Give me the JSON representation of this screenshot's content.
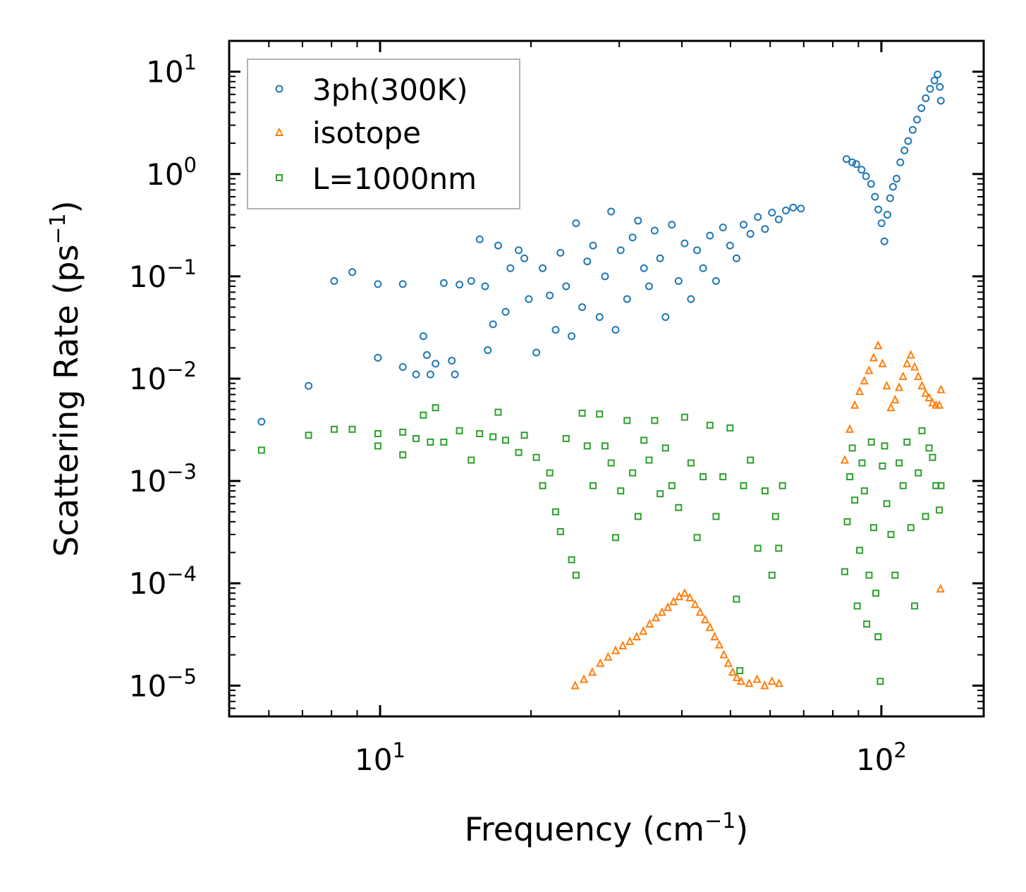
{
  "chart_data": {
    "type": "scatter",
    "title": "",
    "xlabel": "Frequency (cm⁻¹)",
    "xlabel_base": "Frequency (cm",
    "xlabel_sup": "−1",
    "xlabel_end": ")",
    "ylabel": "Scattering Rate (ps⁻¹)",
    "ylabel_base": "Scattering Rate (ps",
    "ylabel_sup": "−1",
    "ylabel_end": ")",
    "xscale": "log",
    "yscale": "log",
    "xlim": [
      5,
      160
    ],
    "ylim": [
      5e-06,
      20
    ],
    "x_ticks": [
      {
        "value": 10,
        "base": "10",
        "exp": "1"
      },
      {
        "value": 100,
        "base": "10",
        "exp": "2"
      }
    ],
    "y_ticks": [
      {
        "value": 10,
        "base": "10",
        "exp": "1"
      },
      {
        "value": 1,
        "base": "10",
        "exp": "0"
      },
      {
        "value": 0.1,
        "base": "10",
        "exp": "−1"
      },
      {
        "value": 0.01,
        "base": "10",
        "exp": "−2"
      },
      {
        "value": 0.001,
        "base": "10",
        "exp": "−3"
      },
      {
        "value": 0.0001,
        "base": "10",
        "exp": "−4"
      },
      {
        "value": 1e-05,
        "base": "10",
        "exp": "−5"
      }
    ],
    "grid": false,
    "legend_position": "top-left",
    "series": [
      {
        "name": "3ph(300K)",
        "label": "3ph(300K)",
        "marker": "circle",
        "color": "#1f77b4",
        "points": [
          [
            5.8,
            0.0038
          ],
          [
            7.2,
            0.0085
          ],
          [
            8.1,
            0.09
          ],
          [
            8.8,
            0.11
          ],
          [
            9.9,
            0.084
          ],
          [
            9.9,
            0.016
          ],
          [
            11.1,
            0.084
          ],
          [
            11.1,
            0.013
          ],
          [
            11.8,
            0.011
          ],
          [
            12.2,
            0.026
          ],
          [
            12.4,
            0.017
          ],
          [
            12.6,
            0.011
          ],
          [
            12.9,
            0.014
          ],
          [
            13.4,
            0.086
          ],
          [
            13.9,
            0.015
          ],
          [
            14.4,
            0.083
          ],
          [
            14.1,
            0.011
          ],
          [
            15.2,
            0.09
          ],
          [
            15.8,
            0.23
          ],
          [
            16.2,
            0.08
          ],
          [
            16.4,
            0.019
          ],
          [
            16.8,
            0.034
          ],
          [
            17.2,
            0.2
          ],
          [
            17.8,
            0.045
          ],
          [
            18.2,
            0.12
          ],
          [
            18.9,
            0.18
          ],
          [
            19.4,
            0.15
          ],
          [
            19.8,
            0.06
          ],
          [
            20.5,
            0.018
          ],
          [
            21.1,
            0.12
          ],
          [
            21.8,
            0.065
          ],
          [
            22.4,
            0.03
          ],
          [
            22.9,
            0.17
          ],
          [
            23.5,
            0.08
          ],
          [
            24.1,
            0.026
          ],
          [
            24.6,
            0.33
          ],
          [
            25.3,
            0.05
          ],
          [
            25.9,
            0.14
          ],
          [
            26.6,
            0.2
          ],
          [
            27.4,
            0.04
          ],
          [
            28.1,
            0.1
          ],
          [
            28.9,
            0.43
          ],
          [
            29.5,
            0.03
          ],
          [
            30.2,
            0.18
          ],
          [
            31.1,
            0.06
          ],
          [
            31.9,
            0.24
          ],
          [
            32.7,
            0.35
          ],
          [
            33.6,
            0.12
          ],
          [
            34.4,
            0.08
          ],
          [
            35.3,
            0.28
          ],
          [
            36.2,
            0.15
          ],
          [
            37.1,
            0.04
          ],
          [
            38.2,
            0.32
          ],
          [
            39.4,
            0.09
          ],
          [
            40.5,
            0.21
          ],
          [
            41.7,
            0.06
          ],
          [
            42.9,
            0.18
          ],
          [
            44.1,
            0.12
          ],
          [
            45.5,
            0.25
          ],
          [
            46.8,
            0.09
          ],
          [
            48.3,
            0.3
          ],
          [
            49.9,
            0.2
          ],
          [
            51.4,
            0.15
          ],
          [
            53.1,
            0.32
          ],
          [
            54.8,
            0.26
          ],
          [
            56.7,
            0.38
          ],
          [
            58.6,
            0.29
          ],
          [
            60.5,
            0.42
          ],
          [
            62.4,
            0.36
          ],
          [
            64.5,
            0.44
          ],
          [
            66.7,
            0.47
          ],
          [
            69.1,
            0.46
          ],
          [
            85.2,
            1.4
          ],
          [
            87.5,
            1.3
          ],
          [
            89.1,
            1.25
          ],
          [
            91.3,
            1.1
          ],
          [
            93.2,
            0.95
          ],
          [
            95.4,
            0.8
          ],
          [
            97.1,
            0.6
          ],
          [
            98.6,
            0.45
          ],
          [
            100.1,
            0.33
          ],
          [
            101.4,
            0.22
          ],
          [
            102.8,
            0.4
          ],
          [
            104.1,
            0.58
          ],
          [
            105.5,
            0.75
          ],
          [
            107.2,
            0.9
          ],
          [
            109.1,
            1.3
          ],
          [
            111.2,
            1.7
          ],
          [
            113.1,
            2.1
          ],
          [
            115.5,
            2.7
          ],
          [
            117.8,
            3.4
          ],
          [
            120.2,
            4.4
          ],
          [
            122.6,
            5.5
          ],
          [
            125.1,
            6.8
          ],
          [
            127.6,
            8.2
          ],
          [
            129.5,
            9.4
          ],
          [
            130.8,
            7.1
          ],
          [
            131.4,
            5.2
          ]
        ]
      },
      {
        "name": "isotope",
        "label": "isotope",
        "marker": "triangle",
        "color": "#ff7f0e",
        "points": [
          [
            24.5,
            1e-05
          ],
          [
            25.5,
            1.15e-05
          ],
          [
            26.5,
            1.35e-05
          ],
          [
            27.5,
            1.65e-05
          ],
          [
            28.5,
            1.9e-05
          ],
          [
            29.5,
            2.2e-05
          ],
          [
            30.5,
            2.45e-05
          ],
          [
            31.5,
            2.7e-05
          ],
          [
            32.5,
            3e-05
          ],
          [
            33.5,
            3.4e-05
          ],
          [
            34.5,
            4e-05
          ],
          [
            35.5,
            4.6e-05
          ],
          [
            36.5,
            5.2e-05
          ],
          [
            37.5,
            5.8e-05
          ],
          [
            38.5,
            6.6e-05
          ],
          [
            39.5,
            7.4e-05
          ],
          [
            40.5,
            8e-05
          ],
          [
            41.5,
            7.2e-05
          ],
          [
            42.5,
            6.2e-05
          ],
          [
            43.5,
            5.2e-05
          ],
          [
            44.5,
            4.4e-05
          ],
          [
            45.5,
            3.7e-05
          ],
          [
            46.5,
            3e-05
          ],
          [
            47.5,
            2.5e-05
          ],
          [
            48.5,
            2e-05
          ],
          [
            49.5,
            1.65e-05
          ],
          [
            50.5,
            1.35e-05
          ],
          [
            51.5,
            1.2e-05
          ],
          [
            52.5,
            1.1e-05
          ],
          [
            54.5,
            1.05e-05
          ],
          [
            56.5,
            1.15e-05
          ],
          [
            58.5,
            1e-05
          ],
          [
            60.5,
            1.1e-05
          ],
          [
            62.5,
            1.05e-05
          ],
          [
            84.5,
            0.0016
          ],
          [
            86.5,
            0.0032
          ],
          [
            88.5,
            0.0055
          ],
          [
            90.5,
            0.0075
          ],
          [
            92.5,
            0.0095
          ],
          [
            94.5,
            0.012
          ],
          [
            96.5,
            0.016
          ],
          [
            98.5,
            0.021
          ],
          [
            100.5,
            0.014
          ],
          [
            102.5,
            0.0085
          ],
          [
            104.5,
            0.0052
          ],
          [
            106.5,
            0.0062
          ],
          [
            108.5,
            0.0082
          ],
          [
            110.5,
            0.0105
          ],
          [
            112.5,
            0.014
          ],
          [
            114.5,
            0.017
          ],
          [
            116.5,
            0.013
          ],
          [
            118.5,
            0.0105
          ],
          [
            120.5,
            0.0085
          ],
          [
            122.5,
            0.0072
          ],
          [
            124.5,
            0.0065
          ],
          [
            126.5,
            0.0058
          ],
          [
            128.5,
            0.0055
          ],
          [
            130.5,
            0.0055
          ],
          [
            131.5,
            0.0078
          ],
          [
            131.2,
            8.8e-05
          ]
        ]
      },
      {
        "name": "L=1000nm",
        "label": "L=1000nm",
        "marker": "square",
        "color": "#2ca02c",
        "points": [
          [
            5.8,
            0.002
          ],
          [
            7.2,
            0.0028
          ],
          [
            8.1,
            0.0032
          ],
          [
            8.8,
            0.0032
          ],
          [
            9.9,
            0.0029
          ],
          [
            9.9,
            0.0022
          ],
          [
            11.1,
            0.003
          ],
          [
            11.1,
            0.0018
          ],
          [
            11.8,
            0.0026
          ],
          [
            12.2,
            0.0044
          ],
          [
            12.6,
            0.0024
          ],
          [
            12.9,
            0.0052
          ],
          [
            13.4,
            0.0024
          ],
          [
            14.4,
            0.0031
          ],
          [
            15.2,
            0.0016
          ],
          [
            15.8,
            0.0029
          ],
          [
            16.8,
            0.0027
          ],
          [
            17.2,
            0.0047
          ],
          [
            17.8,
            0.0025
          ],
          [
            18.9,
            0.0019
          ],
          [
            19.4,
            0.0028
          ],
          [
            20.5,
            0.0017
          ],
          [
            21.1,
            0.0009
          ],
          [
            21.8,
            0.0012
          ],
          [
            22.4,
            0.0005
          ],
          [
            22.9,
            0.00032
          ],
          [
            23.5,
            0.0026
          ],
          [
            24.1,
            0.00017
          ],
          [
            24.6,
            0.00012
          ],
          [
            25.3,
            0.0046
          ],
          [
            25.9,
            0.0022
          ],
          [
            26.6,
            0.0009
          ],
          [
            27.4,
            0.0045
          ],
          [
            28.1,
            0.0022
          ],
          [
            28.9,
            0.0015
          ],
          [
            29.5,
            0.00028
          ],
          [
            30.2,
            0.0008
          ],
          [
            31.1,
            0.0039
          ],
          [
            31.9,
            0.0012
          ],
          [
            32.7,
            0.00045
          ],
          [
            33.6,
            0.0025
          ],
          [
            34.4,
            0.0016
          ],
          [
            35.3,
            0.0039
          ],
          [
            36.2,
            0.00075
          ],
          [
            37.1,
            0.0021
          ],
          [
            38.2,
            0.0009
          ],
          [
            39.4,
            0.00055
          ],
          [
            40.5,
            0.0042
          ],
          [
            41.7,
            0.0015
          ],
          [
            42.9,
            0.00028
          ],
          [
            44.1,
            0.0011
          ],
          [
            45.5,
            0.0035
          ],
          [
            46.8,
            0.00045
          ],
          [
            48.3,
            0.0011
          ],
          [
            49.9,
            0.0033
          ],
          [
            51.4,
            7e-05
          ],
          [
            52.2,
            1.4e-05
          ],
          [
            53.1,
            0.0009
          ],
          [
            54.8,
            0.0016
          ],
          [
            56.7,
            0.00022
          ],
          [
            58.6,
            0.0008
          ],
          [
            60.5,
            0.00012
          ],
          [
            61.5,
            0.00045
          ],
          [
            62.4,
            0.00022
          ],
          [
            63.5,
            0.0009
          ],
          [
            84.5,
            0.00013
          ],
          [
            85.5,
            0.0004
          ],
          [
            86.5,
            0.0011
          ],
          [
            87.5,
            0.0021
          ],
          [
            88.5,
            0.00065
          ],
          [
            89.5,
            6e-05
          ],
          [
            90.5,
            0.00021
          ],
          [
            91.5,
            0.0015
          ],
          [
            92.5,
            0.0008
          ],
          [
            93.5,
            4e-05
          ],
          [
            94.5,
            0.00012
          ],
          [
            95.5,
            0.0024
          ],
          [
            96.5,
            0.00035
          ],
          [
            97.5,
            8e-05
          ],
          [
            98.5,
            3e-05
          ],
          [
            99.5,
            1.1e-05
          ],
          [
            100.5,
            0.0014
          ],
          [
            101.5,
            0.0022
          ],
          [
            102.5,
            0.0006
          ],
          [
            104.5,
            0.0003
          ],
          [
            106.5,
            0.00012
          ],
          [
            108.5,
            0.0015
          ],
          [
            110.5,
            0.0009
          ],
          [
            112.5,
            0.0024
          ],
          [
            114.5,
            0.00035
          ],
          [
            116.5,
            6e-05
          ],
          [
            118.5,
            0.0012
          ],
          [
            120.5,
            0.0031
          ],
          [
            122.5,
            0.00045
          ],
          [
            124.5,
            0.0021
          ],
          [
            126.5,
            0.0017
          ],
          [
            128.5,
            0.0009
          ],
          [
            130.5,
            0.00052
          ],
          [
            131.5,
            0.0009
          ]
        ]
      }
    ]
  }
}
